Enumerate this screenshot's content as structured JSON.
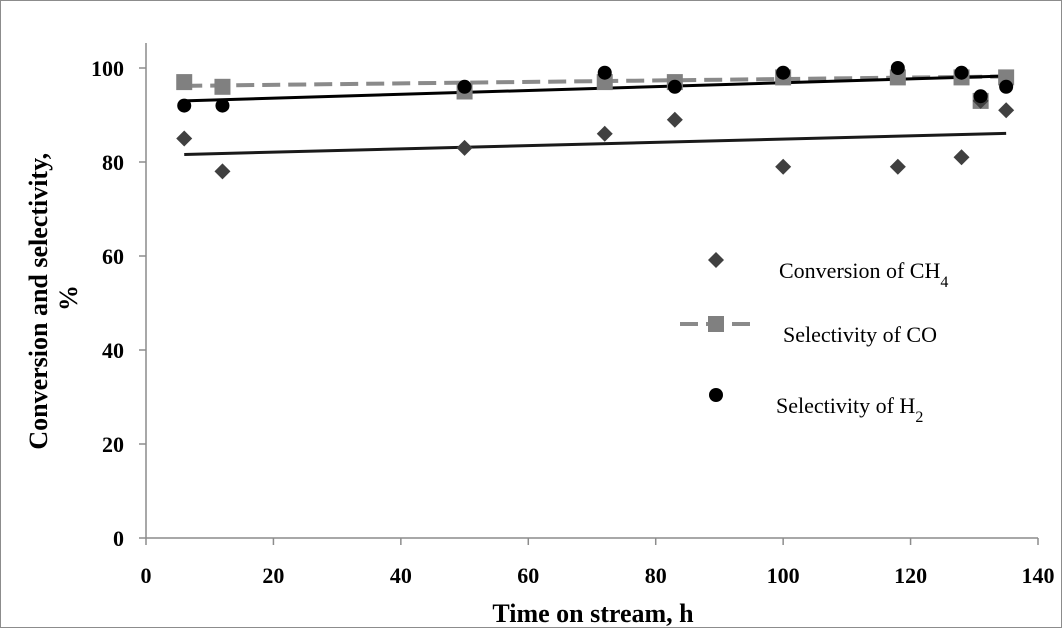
{
  "chart_data": {
    "type": "scatter",
    "title": "",
    "xlabel": "Time on stream, h",
    "ylabel_lines": [
      "Conversion and selectivity,",
      "%"
    ],
    "xlim": [
      0,
      140
    ],
    "ylim": [
      0,
      100
    ],
    "xticks": [
      0,
      20,
      40,
      60,
      80,
      100,
      120,
      140
    ],
    "yticks": [
      0,
      20,
      40,
      60,
      80,
      100
    ],
    "grid": false,
    "legend_position": "right",
    "series": [
      {
        "name": "Conversion of CH4",
        "legend_text": "Conversion of CH",
        "legend_subscript": "4",
        "marker": "diamond",
        "color": "#404040",
        "points": [
          [
            6,
            85
          ],
          [
            12,
            78
          ],
          [
            50,
            83
          ],
          [
            72,
            86
          ],
          [
            83,
            89
          ],
          [
            100,
            79
          ],
          [
            118,
            79
          ],
          [
            128,
            81
          ],
          [
            131,
            93
          ],
          [
            135,
            91
          ]
        ],
        "trendline": {
          "style": "solid",
          "color": "#1a1a1a",
          "from": [
            6,
            81.6
          ],
          "to": [
            135,
            86.1
          ]
        }
      },
      {
        "name": "Selectivity of CO",
        "legend_text": "Selectivity of CO",
        "legend_subscript": "",
        "marker": "square",
        "color": "#808080",
        "points": [
          [
            6,
            97
          ],
          [
            12,
            96
          ],
          [
            50,
            95
          ],
          [
            72,
            97
          ],
          [
            83,
            97
          ],
          [
            100,
            98
          ],
          [
            118,
            98
          ],
          [
            128,
            98
          ],
          [
            131,
            93
          ],
          [
            135,
            98
          ]
        ],
        "trendline": {
          "style": "dashed",
          "color": "#8a8a8a",
          "from": [
            6,
            96.2
          ],
          "to": [
            135,
            98.2
          ]
        }
      },
      {
        "name": "Selectivity of H2",
        "legend_text": "Selectivity of H",
        "legend_subscript": "2",
        "marker": "circle",
        "color": "#000000",
        "points": [
          [
            6,
            92
          ],
          [
            12,
            92
          ],
          [
            50,
            96
          ],
          [
            72,
            99
          ],
          [
            83,
            96
          ],
          [
            100,
            99
          ],
          [
            118,
            100
          ],
          [
            128,
            99
          ],
          [
            131,
            94
          ],
          [
            135,
            96
          ]
        ],
        "trendline": {
          "style": "solid",
          "color": "#000000",
          "from": [
            6,
            93.0
          ],
          "to": [
            135,
            98.3
          ]
        }
      }
    ]
  }
}
